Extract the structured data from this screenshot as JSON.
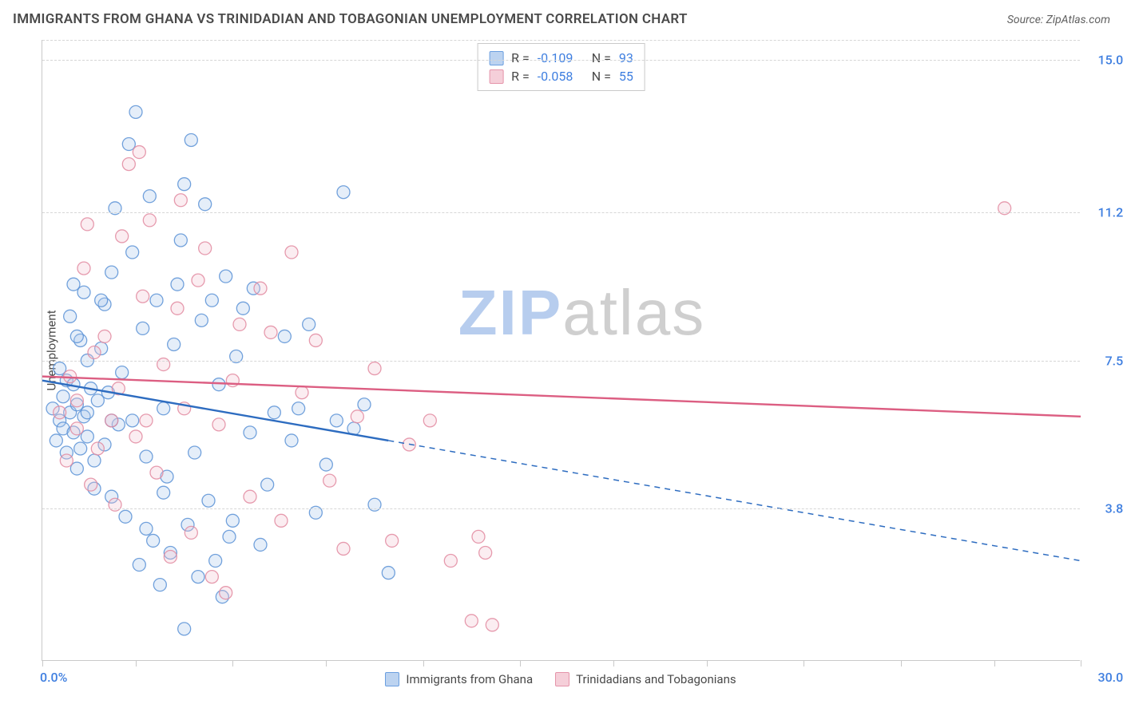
{
  "title": "IMMIGRANTS FROM GHANA VS TRINIDADIAN AND TOBAGONIAN UNEMPLOYMENT CORRELATION CHART",
  "source_label": "Source:",
  "source_value": "ZipAtlas.com",
  "y_axis_label": "Unemployment",
  "chart": {
    "type": "scatter",
    "xlim": [
      0,
      30
    ],
    "ylim": [
      0,
      15.5
    ],
    "x_origin_label": "0.0%",
    "x_end_label": "30.0%",
    "yticks": [
      3.8,
      7.5,
      11.2,
      15.0
    ],
    "ytick_labels": [
      "3.8%",
      "7.5%",
      "11.2%",
      "15.0%"
    ],
    "xtick_positions": [
      0,
      2.7,
      5.5,
      8.2,
      11.0,
      13.8,
      16.5,
      19.2,
      22.0,
      24.8,
      27.5,
      30.0
    ],
    "grid_color": "#d6d6d6",
    "axis_color": "#c9c9c9",
    "background_color": "#ffffff",
    "tick_label_color": "#3f7fe0",
    "tick_label_fontsize": 16,
    "marker_radius": 8,
    "marker_fill_opacity": 0.3,
    "marker_stroke_opacity": 0.85,
    "marker_stroke_width": 1.3
  },
  "series": [
    {
      "id": "ghana",
      "label": "Immigrants from Ghana",
      "color_stroke": "#5b92d6",
      "color_fill": "#a9c6ea",
      "swatch_fill": "#bcd3f0",
      "swatch_border": "#6b9fe0",
      "r": "-0.109",
      "n": "93",
      "trend": {
        "y_at_x0": 7.0,
        "y_at_x30": 2.5,
        "solid_until_x": 10.0,
        "color": "#2d6cc0",
        "width": 2.4
      },
      "points": [
        [
          0.3,
          6.3
        ],
        [
          0.4,
          5.5
        ],
        [
          0.5,
          6.0
        ],
        [
          0.5,
          7.3
        ],
        [
          0.6,
          5.8
        ],
        [
          0.6,
          6.6
        ],
        [
          0.7,
          5.2
        ],
        [
          0.7,
          7.0
        ],
        [
          0.8,
          6.2
        ],
        [
          0.8,
          8.6
        ],
        [
          0.9,
          5.7
        ],
        [
          0.9,
          6.9
        ],
        [
          1.0,
          4.8
        ],
        [
          1.0,
          6.4
        ],
        [
          1.1,
          5.3
        ],
        [
          1.1,
          8.0
        ],
        [
          1.2,
          6.1
        ],
        [
          1.2,
          9.2
        ],
        [
          1.3,
          5.6
        ],
        [
          1.3,
          7.5
        ],
        [
          1.4,
          6.8
        ],
        [
          1.5,
          4.3
        ],
        [
          1.5,
          5.0
        ],
        [
          1.6,
          6.5
        ],
        [
          1.7,
          7.8
        ],
        [
          1.8,
          5.4
        ],
        [
          1.8,
          8.9
        ],
        [
          1.9,
          6.7
        ],
        [
          2.0,
          9.7
        ],
        [
          2.0,
          4.1
        ],
        [
          2.1,
          11.3
        ],
        [
          2.2,
          5.9
        ],
        [
          2.3,
          7.2
        ],
        [
          2.4,
          3.6
        ],
        [
          2.5,
          12.9
        ],
        [
          2.6,
          6.0
        ],
        [
          2.7,
          13.7
        ],
        [
          2.8,
          2.4
        ],
        [
          2.9,
          8.3
        ],
        [
          3.0,
          5.1
        ],
        [
          3.1,
          11.6
        ],
        [
          3.2,
          3.0
        ],
        [
          3.3,
          9.0
        ],
        [
          3.4,
          1.9
        ],
        [
          3.5,
          6.3
        ],
        [
          3.6,
          4.6
        ],
        [
          3.7,
          2.7
        ],
        [
          3.8,
          7.9
        ],
        [
          3.9,
          9.4
        ],
        [
          4.0,
          10.5
        ],
        [
          4.1,
          11.9
        ],
        [
          4.2,
          3.4
        ],
        [
          4.3,
          13.0
        ],
        [
          4.4,
          5.2
        ],
        [
          4.5,
          2.1
        ],
        [
          4.6,
          8.5
        ],
        [
          4.7,
          11.4
        ],
        [
          4.8,
          4.0
        ],
        [
          5.0,
          2.5
        ],
        [
          5.1,
          6.9
        ],
        [
          5.2,
          1.6
        ],
        [
          5.3,
          9.6
        ],
        [
          5.4,
          3.1
        ],
        [
          5.6,
          7.6
        ],
        [
          5.8,
          8.8
        ],
        [
          6.0,
          5.7
        ],
        [
          6.1,
          9.3
        ],
        [
          6.3,
          2.9
        ],
        [
          6.5,
          4.4
        ],
        [
          6.7,
          6.2
        ],
        [
          7.0,
          8.1
        ],
        [
          7.2,
          5.5
        ],
        [
          7.4,
          6.3
        ],
        [
          7.7,
          8.4
        ],
        [
          7.9,
          3.7
        ],
        [
          8.2,
          4.9
        ],
        [
          8.5,
          6.0
        ],
        [
          8.7,
          11.7
        ],
        [
          9.0,
          5.8
        ],
        [
          9.3,
          6.4
        ],
        [
          9.6,
          3.9
        ],
        [
          10.0,
          2.2
        ],
        [
          4.1,
          0.8
        ],
        [
          3.0,
          3.3
        ],
        [
          2.6,
          10.2
        ],
        [
          1.7,
          9.0
        ],
        [
          1.0,
          8.1
        ],
        [
          3.5,
          4.2
        ],
        [
          4.9,
          9.0
        ],
        [
          2.0,
          6.0
        ],
        [
          1.3,
          6.2
        ],
        [
          0.9,
          9.4
        ],
        [
          5.5,
          3.5
        ]
      ]
    },
    {
      "id": "trinidad",
      "label": "Trinidadians and Tobagonians",
      "color_stroke": "#e28aa0",
      "color_fill": "#f3c2cf",
      "swatch_fill": "#f5cfd9",
      "swatch_border": "#e594aa",
      "r": "-0.058",
      "n": "55",
      "trend": {
        "y_at_x0": 7.1,
        "y_at_x30": 6.1,
        "solid_until_x": 30.0,
        "color": "#dc5e82",
        "width": 2.4
      },
      "points": [
        [
          0.5,
          6.2
        ],
        [
          0.7,
          5.0
        ],
        [
          0.8,
          7.1
        ],
        [
          1.0,
          6.5
        ],
        [
          1.2,
          9.8
        ],
        [
          1.4,
          4.4
        ],
        [
          1.5,
          7.7
        ],
        [
          1.6,
          5.3
        ],
        [
          1.8,
          8.1
        ],
        [
          2.0,
          6.0
        ],
        [
          2.1,
          3.9
        ],
        [
          2.3,
          10.6
        ],
        [
          2.5,
          12.4
        ],
        [
          2.7,
          5.6
        ],
        [
          2.9,
          9.1
        ],
        [
          3.1,
          11.0
        ],
        [
          3.3,
          4.7
        ],
        [
          3.5,
          7.4
        ],
        [
          3.7,
          2.6
        ],
        [
          3.9,
          8.8
        ],
        [
          4.1,
          6.3
        ],
        [
          4.3,
          3.2
        ],
        [
          4.5,
          9.5
        ],
        [
          4.7,
          10.3
        ],
        [
          4.9,
          2.1
        ],
        [
          5.1,
          5.9
        ],
        [
          5.3,
          1.7
        ],
        [
          5.5,
          7.0
        ],
        [
          5.7,
          8.4
        ],
        [
          6.0,
          4.1
        ],
        [
          6.3,
          9.3
        ],
        [
          6.6,
          8.2
        ],
        [
          6.9,
          3.5
        ],
        [
          7.2,
          10.2
        ],
        [
          7.5,
          6.7
        ],
        [
          7.9,
          8.0
        ],
        [
          8.3,
          4.5
        ],
        [
          8.7,
          2.8
        ],
        [
          9.1,
          6.1
        ],
        [
          9.6,
          7.3
        ],
        [
          10.1,
          3.0
        ],
        [
          10.6,
          5.4
        ],
        [
          11.2,
          6.0
        ],
        [
          11.8,
          2.5
        ],
        [
          12.4,
          1.0
        ],
        [
          12.6,
          3.1
        ],
        [
          12.8,
          2.7
        ],
        [
          13.0,
          0.9
        ],
        [
          27.8,
          11.3
        ],
        [
          1.0,
          5.8
        ],
        [
          1.3,
          10.9
        ],
        [
          2.2,
          6.8
        ],
        [
          3.0,
          6.0
        ],
        [
          4.0,
          11.5
        ],
        [
          2.8,
          12.7
        ]
      ]
    }
  ],
  "top_legend_labels": {
    "r": "R  =",
    "n": "N  ="
  },
  "watermark": {
    "zip": "ZIP",
    "atlas": "atlas"
  }
}
